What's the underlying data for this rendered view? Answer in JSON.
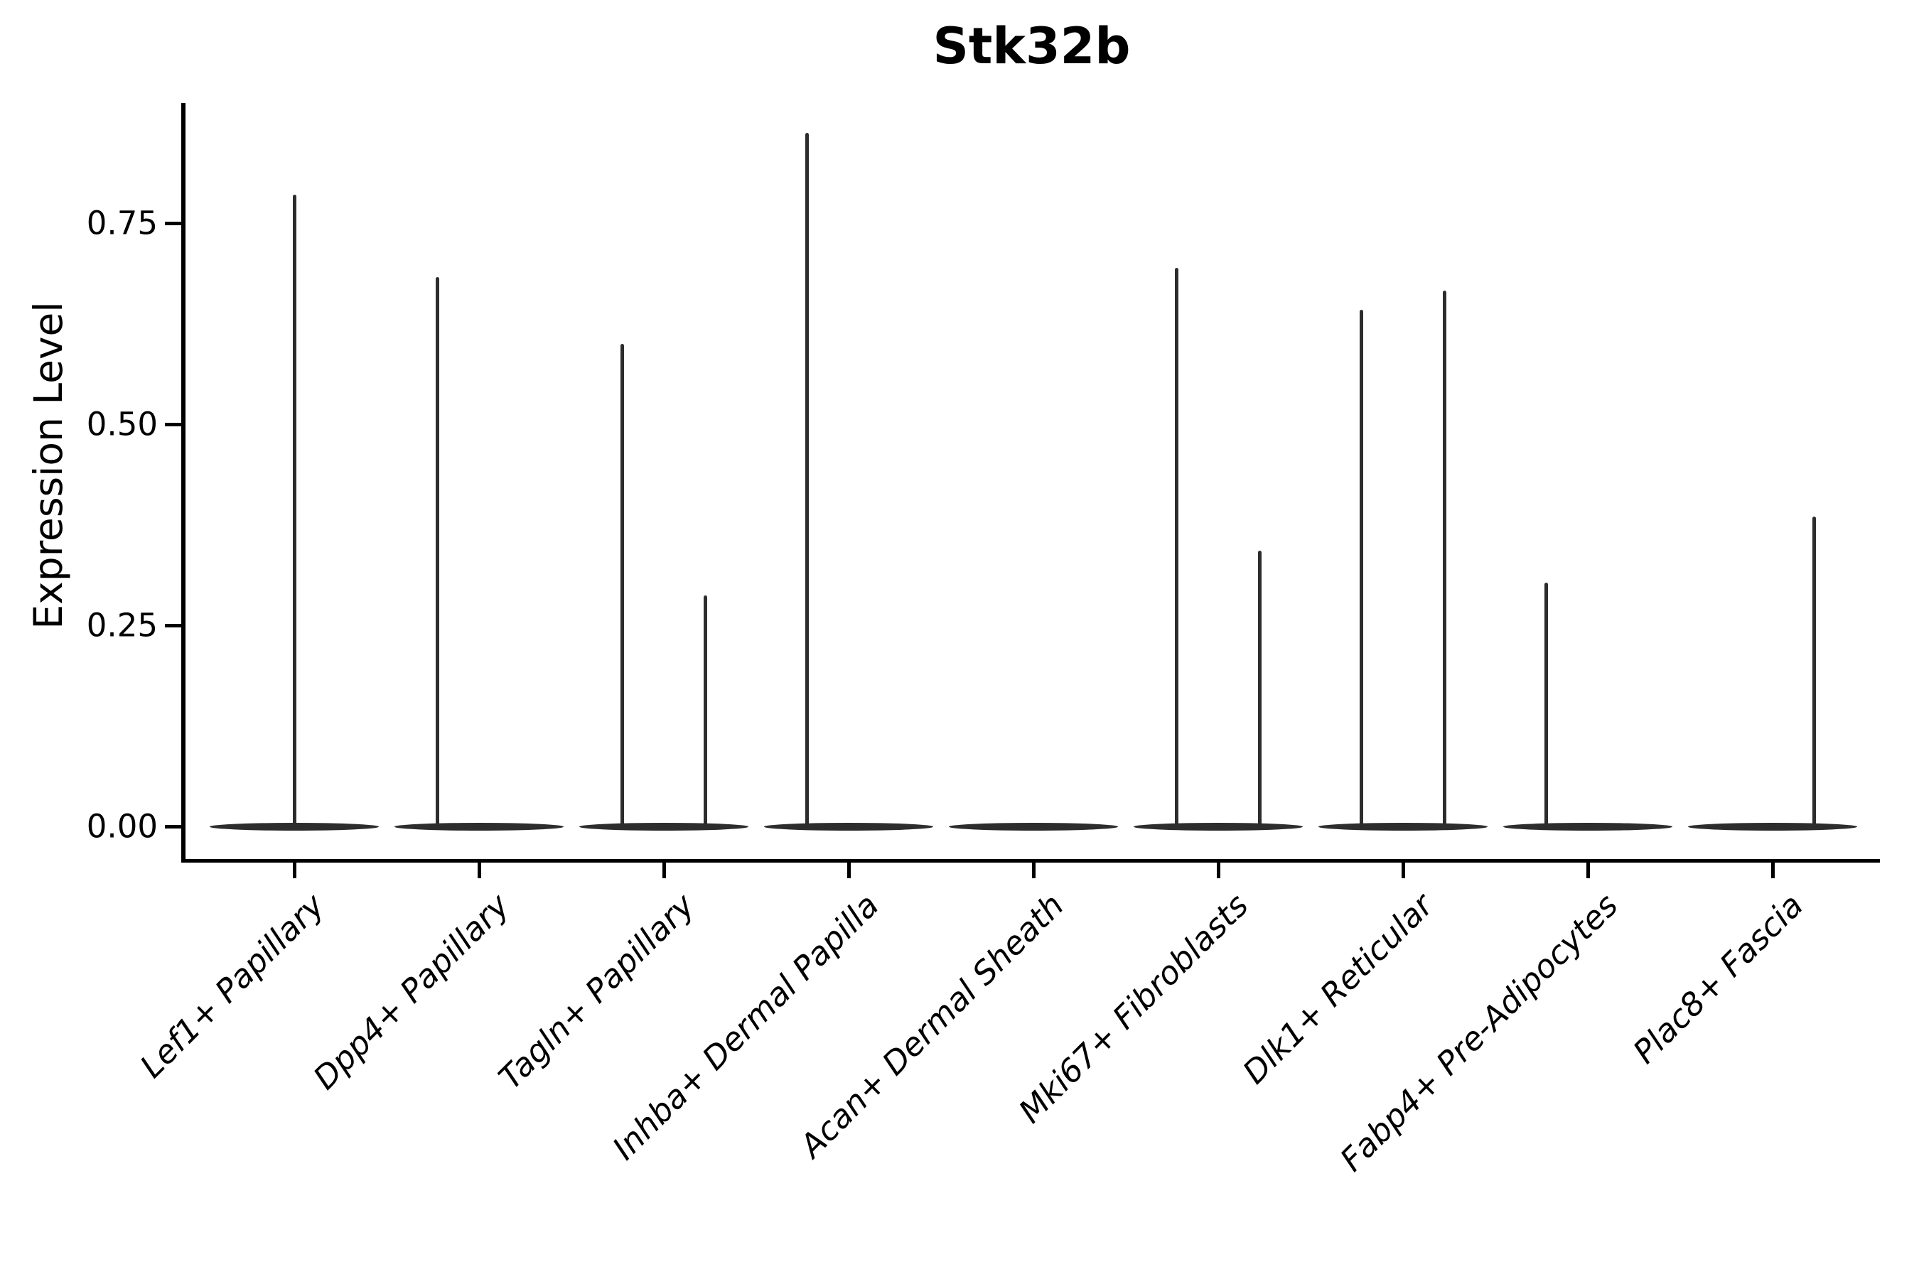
{
  "chart_data": {
    "type": "violin",
    "title": "Stk32b",
    "xlabel": "",
    "ylabel": "Expression Level",
    "ytick_labels": [
      "0.00",
      "0.25",
      "0.50",
      "0.75"
    ],
    "ytick_values": [
      0.0,
      0.25,
      0.5,
      0.75
    ],
    "ylim": [
      -0.04,
      0.9
    ],
    "grid": false,
    "legend_position": "none",
    "categories": [
      "Lef1+ Papillary",
      "Dpp4+ Papillary",
      "Tagln+ Papillary",
      "Inhba+ Dermal Papilla",
      "Acan+ Dermal Sheath",
      "Mki67+ Fibroblasts",
      "Dlk1+ Reticular",
      "Fabp4+ Pre-Adipocytes",
      "Plac8+ Fascia"
    ],
    "violins": [
      {
        "category": "Lef1+ Papillary",
        "base_value": 0.0,
        "spikes": [
          {
            "offset_frac": 0.0,
            "peak": 0.785
          }
        ]
      },
      {
        "category": "Dpp4+ Papillary",
        "base_value": 0.0,
        "spikes": [
          {
            "offset_frac": -0.225,
            "peak": 0.683
          }
        ]
      },
      {
        "category": "Tagln+ Papillary",
        "base_value": 0.0,
        "spikes": [
          {
            "offset_frac": -0.225,
            "peak": 0.6
          },
          {
            "offset_frac": 0.225,
            "peak": 0.287
          }
        ]
      },
      {
        "category": "Inhba+ Dermal Papilla",
        "base_value": 0.0,
        "spikes": [
          {
            "offset_frac": -0.225,
            "peak": 0.862
          }
        ]
      },
      {
        "category": "Acan+ Dermal Sheath",
        "base_value": 0.0,
        "spikes": []
      },
      {
        "category": "Mki67+ Fibroblasts",
        "base_value": 0.0,
        "spikes": [
          {
            "offset_frac": -0.225,
            "peak": 0.694
          },
          {
            "offset_frac": 0.225,
            "peak": 0.343
          }
        ]
      },
      {
        "category": "Dlk1+ Reticular",
        "base_value": 0.0,
        "spikes": [
          {
            "offset_frac": -0.225,
            "peak": 0.642
          },
          {
            "offset_frac": 0.225,
            "peak": 0.666
          }
        ]
      },
      {
        "category": "Fabp4+ Pre-Adipocytes",
        "base_value": 0.0,
        "spikes": [
          {
            "offset_frac": -0.225,
            "peak": 0.303
          }
        ]
      },
      {
        "category": "Plac8+ Fascia",
        "base_value": 0.0,
        "spikes": [
          {
            "offset_frac": 0.225,
            "peak": 0.385
          }
        ]
      }
    ],
    "colors": {
      "violin": "#2d2d2d",
      "axis": "#000000",
      "text": "#000000",
      "background": "#ffffff"
    }
  }
}
